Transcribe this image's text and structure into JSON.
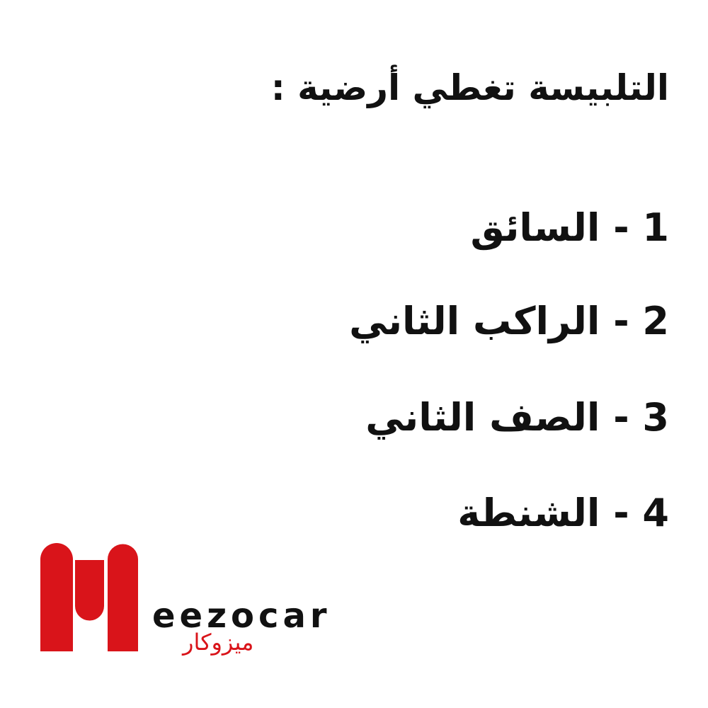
{
  "title": "التلبيسة تغطي أرضية :",
  "items": [
    "1 - السائق",
    "2 - الراكب الثاني",
    "3 - الصف الثاني",
    "4 - الشنطة"
  ],
  "logo": {
    "text_en": "eezocar",
    "text_ar": "ميزوكار",
    "brand_color": "#d9141a"
  }
}
